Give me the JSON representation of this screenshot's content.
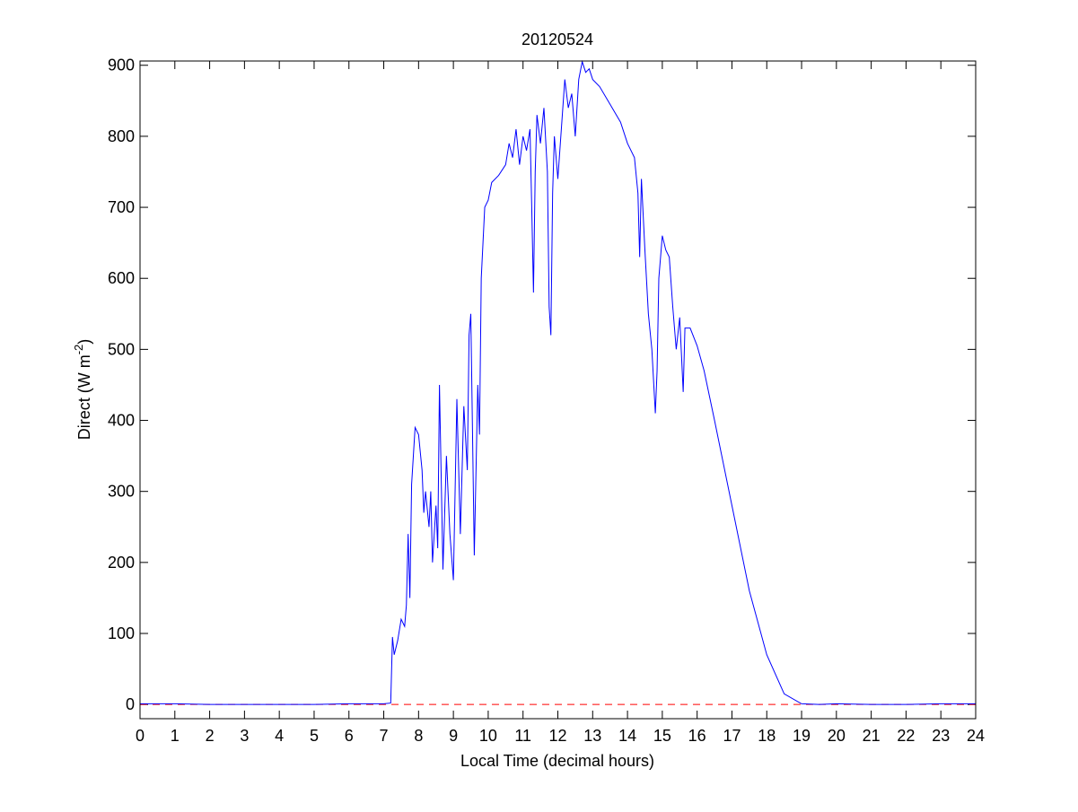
{
  "chart_data": {
    "type": "line",
    "title": "20120524",
    "xlabel": "Local Time (decimal hours)",
    "ylabel": {
      "text": "Direct (W m",
      "superscript": "-2",
      "close": ")"
    },
    "xlim": [
      0,
      24
    ],
    "ylim": [
      -20,
      906
    ],
    "xticks": [
      0,
      1,
      2,
      3,
      4,
      5,
      6,
      7,
      8,
      9,
      10,
      11,
      12,
      13,
      14,
      15,
      16,
      17,
      18,
      19,
      20,
      21,
      22,
      23,
      24
    ],
    "yticks": [
      0,
      100,
      200,
      300,
      400,
      500,
      600,
      700,
      800,
      900
    ],
    "reference_line": {
      "value": 0,
      "color": "#ff0000"
    },
    "series": [
      {
        "color": "#0000ff",
        "x": [
          0,
          1,
          2,
          3,
          4,
          5,
          6,
          7,
          7.2,
          7.25,
          7.3,
          7.4,
          7.5,
          7.6,
          7.65,
          7.7,
          7.75,
          7.8,
          7.9,
          8.0,
          8.1,
          8.15,
          8.2,
          8.3,
          8.35,
          8.4,
          8.5,
          8.55,
          8.6,
          8.7,
          8.8,
          8.9,
          9.0,
          9.1,
          9.2,
          9.3,
          9.4,
          9.45,
          9.5,
          9.6,
          9.7,
          9.75,
          9.8,
          9.85,
          9.9,
          10.0,
          10.1,
          10.3,
          10.5,
          10.6,
          10.7,
          10.8,
          10.9,
          11.0,
          11.1,
          11.2,
          11.25,
          11.3,
          11.35,
          11.4,
          11.5,
          11.6,
          11.7,
          11.75,
          11.8,
          11.85,
          11.9,
          12.0,
          12.1,
          12.2,
          12.3,
          12.4,
          12.5,
          12.6,
          12.7,
          12.8,
          12.9,
          13.0,
          13.2,
          13.5,
          13.8,
          14.0,
          14.2,
          14.3,
          14.35,
          14.4,
          14.5,
          14.6,
          14.7,
          14.8,
          14.85,
          14.9,
          15.0,
          15.1,
          15.2,
          15.3,
          15.4,
          15.5,
          15.6,
          15.65,
          15.8,
          16.0,
          16.2,
          16.5,
          17.0,
          17.5,
          18.0,
          18.5,
          19.0,
          19.5,
          20,
          21,
          22,
          23,
          24
        ],
        "values": [
          1,
          1,
          0,
          0,
          0,
          0,
          1,
          1,
          2,
          95,
          70,
          90,
          120,
          110,
          140,
          240,
          150,
          310,
          390,
          380,
          330,
          270,
          300,
          250,
          300,
          200,
          280,
          220,
          450,
          190,
          350,
          240,
          175,
          430,
          240,
          420,
          330,
          520,
          550,
          210,
          450,
          380,
          600,
          650,
          700,
          710,
          735,
          745,
          760,
          790,
          770,
          810,
          760,
          800,
          780,
          810,
          700,
          580,
          750,
          830,
          790,
          840,
          750,
          560,
          520,
          720,
          800,
          740,
          810,
          880,
          840,
          860,
          800,
          880,
          905,
          890,
          895,
          880,
          870,
          845,
          820,
          790,
          770,
          720,
          630,
          740,
          640,
          550,
          500,
          410,
          470,
          600,
          660,
          640,
          630,
          560,
          500,
          545,
          440,
          530,
          530,
          505,
          470,
          400,
          280,
          160,
          70,
          15,
          1,
          0,
          1,
          0,
          0,
          1,
          1
        ]
      }
    ]
  }
}
